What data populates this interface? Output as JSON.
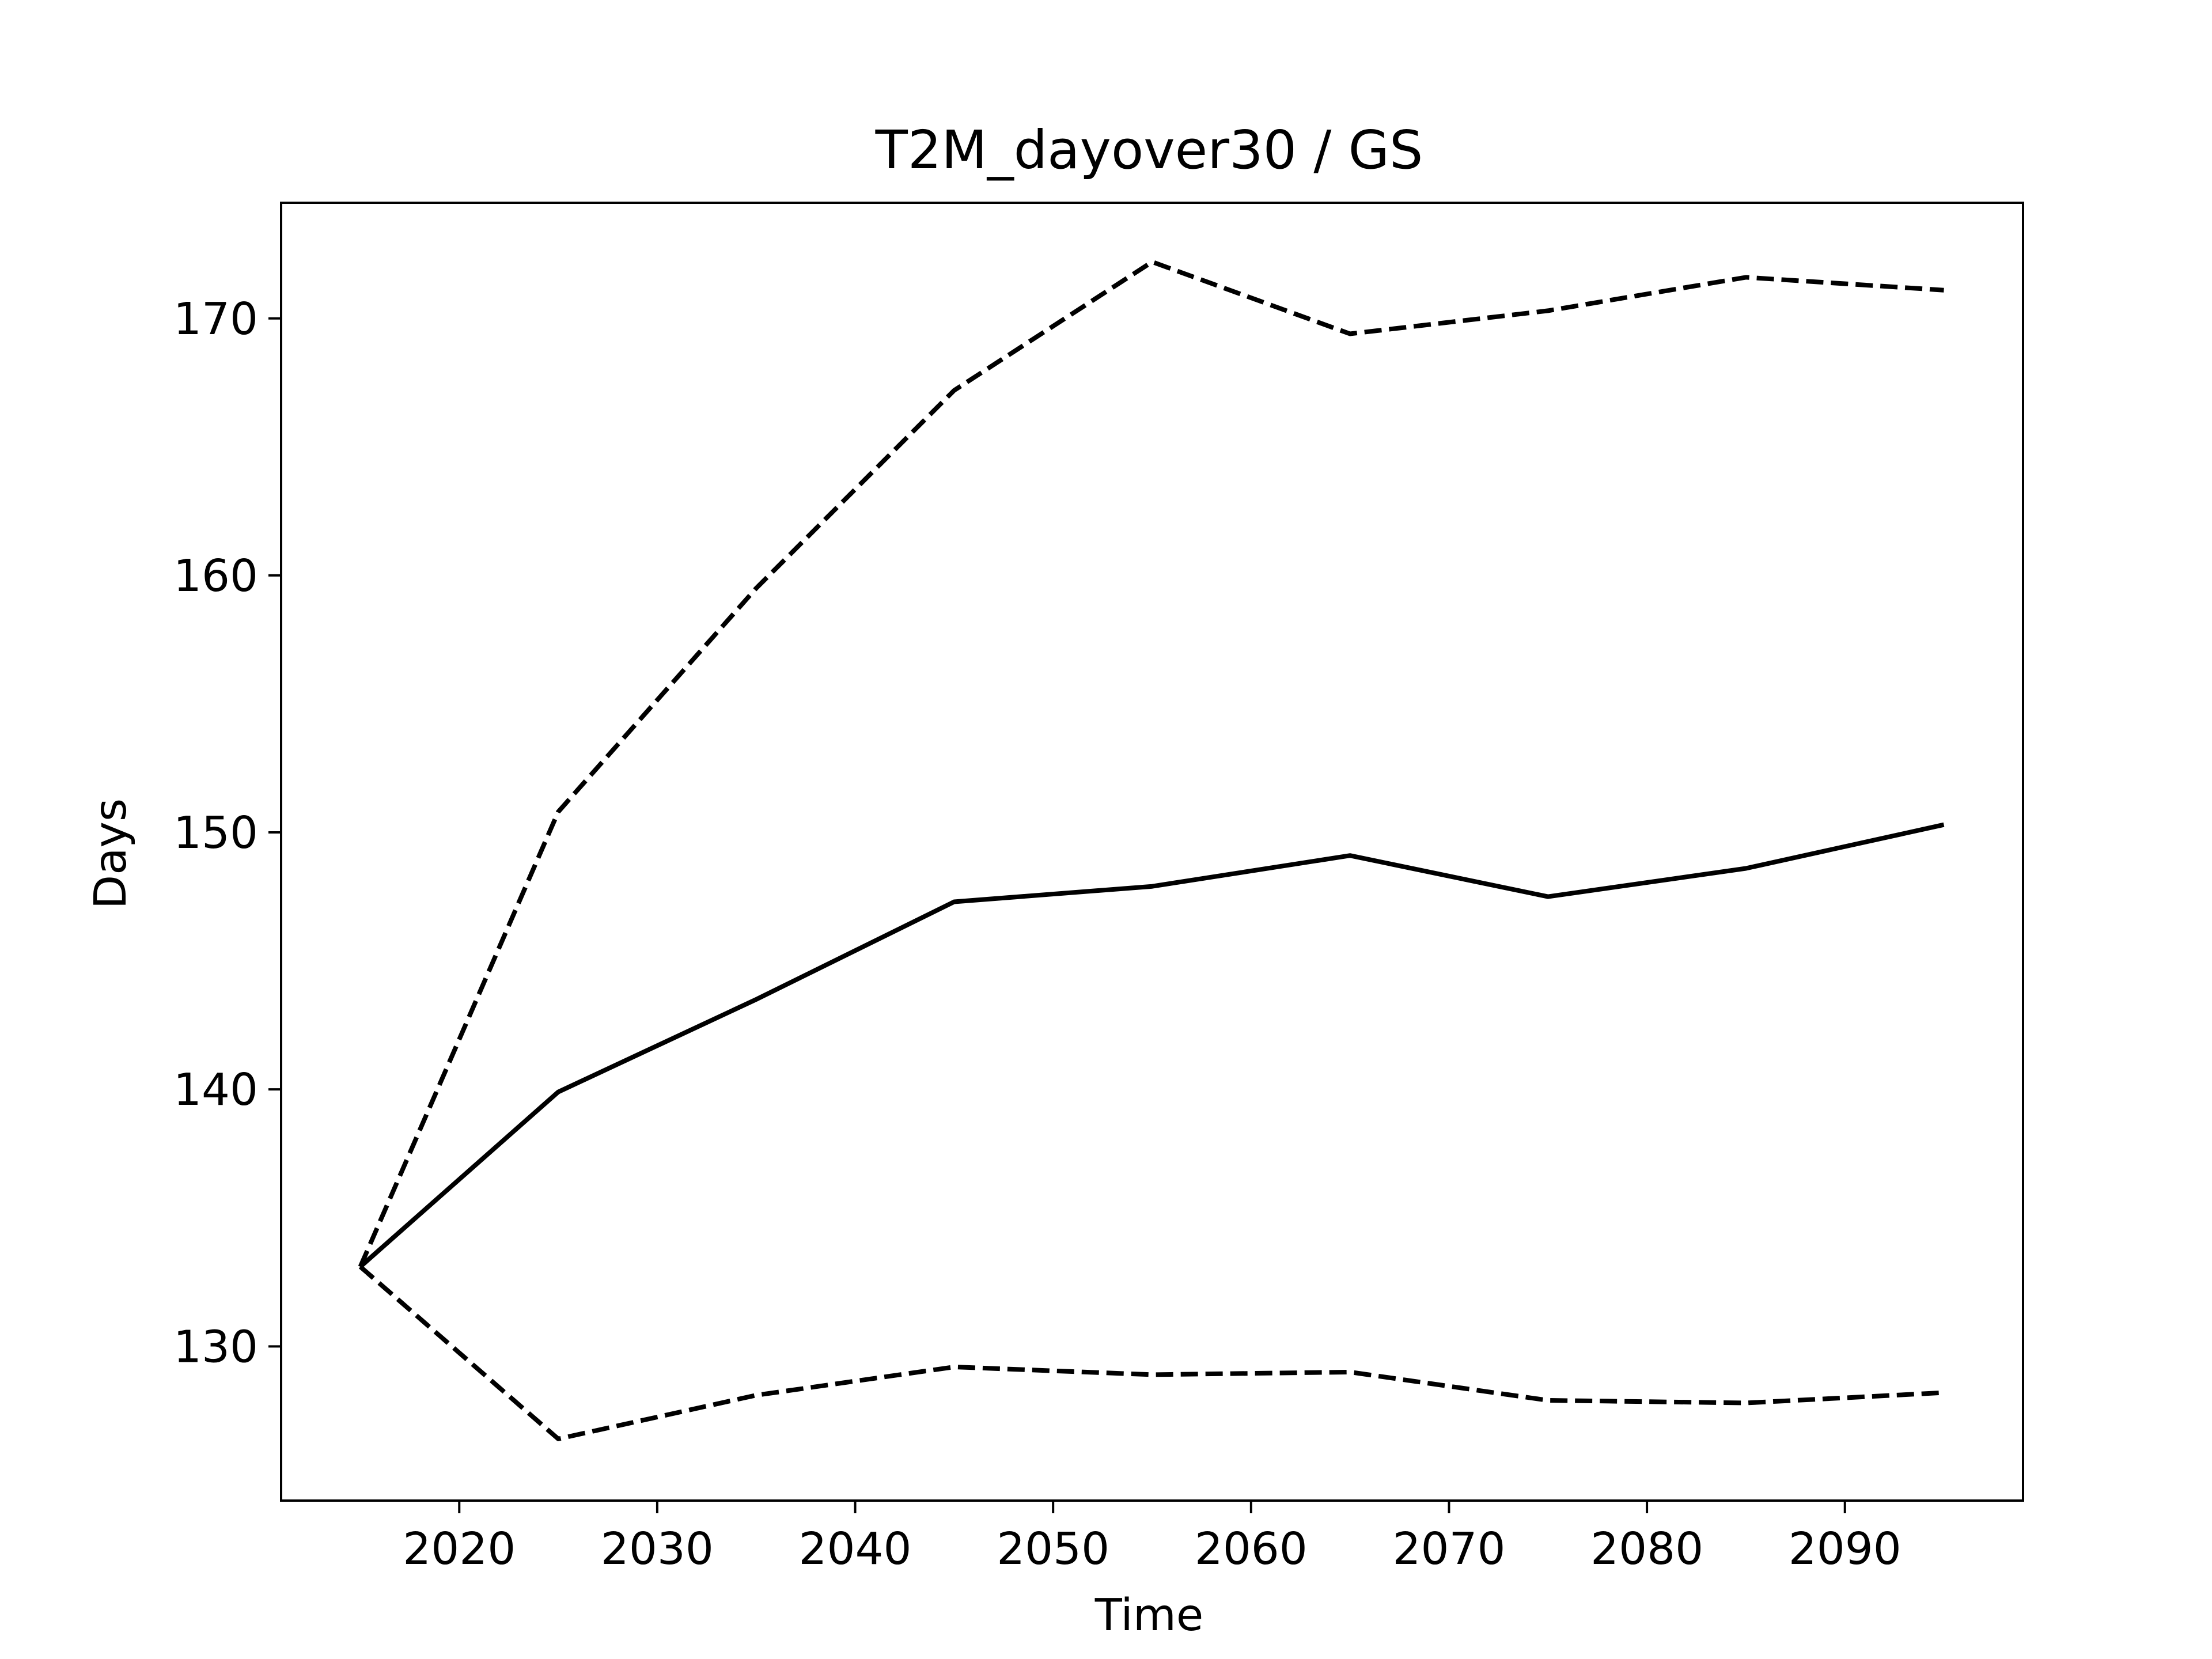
{
  "chart_data": {
    "type": "line",
    "title": "T2M_dayover30 / GS",
    "xlabel": "Time",
    "ylabel": "Days",
    "x": [
      2015,
      2025,
      2035,
      2045,
      2055,
      2065,
      2075,
      2085,
      2095
    ],
    "series": [
      {
        "style": "solid",
        "values": [
          133.1,
          139.9,
          143.5,
          147.3,
          147.9,
          149.1,
          147.5,
          148.6,
          150.3
        ]
      },
      {
        "style": "dashed",
        "values": [
          133.1,
          150.8,
          159.5,
          167.2,
          172.2,
          169.4,
          170.3,
          171.6,
          171.1
        ]
      },
      {
        "style": "dashed",
        "values": [
          133.1,
          126.4,
          128.1,
          129.2,
          128.9,
          129.0,
          127.9,
          127.8,
          128.2
        ]
      }
    ],
    "xlim": [
      2011,
      2099
    ],
    "ylim": [
      124.0,
      174.5
    ],
    "xticks": [
      2020,
      2030,
      2040,
      2050,
      2060,
      2070,
      2080,
      2090
    ],
    "yticks": [
      130,
      140,
      150,
      160,
      170
    ],
    "xtick_labels": [
      "2020",
      "2030",
      "2040",
      "2050",
      "2060",
      "2070",
      "2080",
      "2090"
    ],
    "ytick_labels": [
      "130",
      "140",
      "150",
      "160",
      "170"
    ],
    "grid": false,
    "legend": "none",
    "line_color": "#000000",
    "background": "#ffffff"
  }
}
